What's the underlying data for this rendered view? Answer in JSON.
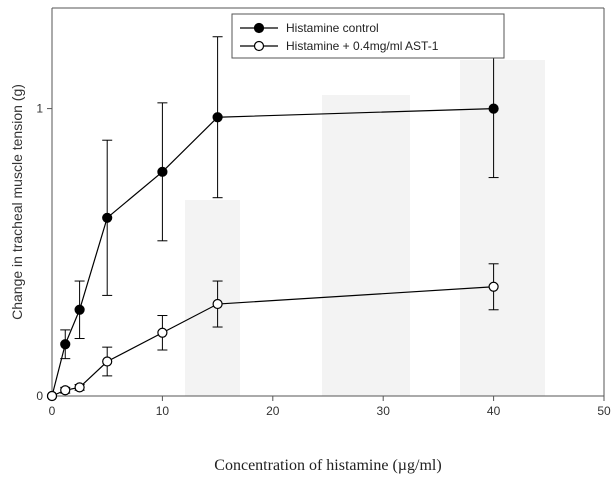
{
  "chart_data": {
    "type": "line",
    "xlabel": "Concentration of histamine (µg/ml)",
    "ylabel": "Change in tracheal muscle tension (g)",
    "xlim": [
      0,
      50
    ],
    "ylim": [
      0,
      1.35
    ],
    "xticks": [
      0,
      10,
      20,
      30,
      40,
      50
    ],
    "yticks": [
      0,
      1
    ],
    "grid": false,
    "legend_position": "top-center",
    "series": [
      {
        "name": "Histamine control",
        "marker": "filled-circle",
        "color": "#000000",
        "points": [
          {
            "x": 0,
            "y": 0,
            "err": 0
          },
          {
            "x": 1.2,
            "y": 0.18,
            "err": 0.05
          },
          {
            "x": 2.5,
            "y": 0.3,
            "err": 0.1
          },
          {
            "x": 5,
            "y": 0.62,
            "err": 0.27
          },
          {
            "x": 10,
            "y": 0.78,
            "err": 0.24
          },
          {
            "x": 15,
            "y": 0.97,
            "err": 0.28
          },
          {
            "x": 40,
            "y": 1.0,
            "err": 0.24
          }
        ]
      },
      {
        "name": "Histamine + 0.4mg/ml AST-1",
        "marker": "open-circle",
        "color": "#000000",
        "points": [
          {
            "x": 0,
            "y": 0,
            "err": 0
          },
          {
            "x": 1.2,
            "y": 0.02,
            "err": 0.01
          },
          {
            "x": 2.5,
            "y": 0.03,
            "err": 0.01
          },
          {
            "x": 5,
            "y": 0.12,
            "err": 0.05
          },
          {
            "x": 10,
            "y": 0.22,
            "err": 0.06
          },
          {
            "x": 15,
            "y": 0.32,
            "err": 0.08
          },
          {
            "x": 40,
            "y": 0.38,
            "err": 0.08
          }
        ]
      }
    ]
  }
}
